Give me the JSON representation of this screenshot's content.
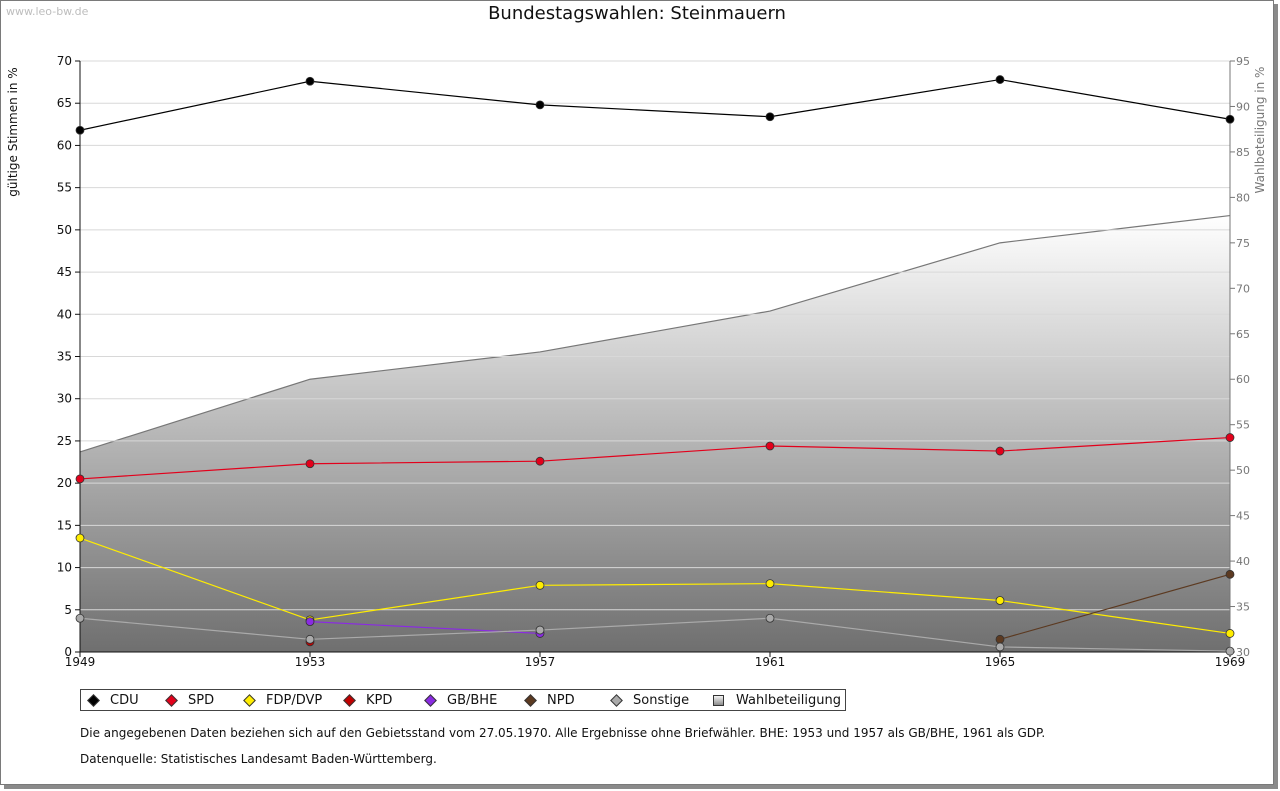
{
  "watermark": "www.leo-bw.de",
  "chart_data": {
    "type": "line",
    "title": "Bundestagswahlen: Steinmauern",
    "ylabel": "gültige Stimmen in %",
    "y2label": "Wahlbeteiligung in %",
    "xlabel": "",
    "x": [
      1949,
      1953,
      1957,
      1961,
      1965,
      1969
    ],
    "x_tick_labels": [
      "1949",
      "1953",
      "1957",
      "1961",
      "1965",
      "1969"
    ],
    "ylim": [
      0,
      70
    ],
    "y_ticks": [
      "0",
      "5",
      "10",
      "15",
      "20",
      "25",
      "30",
      "35",
      "40",
      "45",
      "50",
      "55",
      "60",
      "65",
      "70"
    ],
    "y2lim": [
      30,
      95
    ],
    "y2_ticks": [
      "30",
      "35",
      "40",
      "45",
      "50",
      "55",
      "60",
      "65",
      "70",
      "75",
      "80",
      "85",
      "90",
      "95"
    ],
    "grid": true,
    "legend_position": "bottom",
    "series": [
      {
        "name": "CDU",
        "color": "#000000",
        "axis": "left",
        "values": [
          61.8,
          67.6,
          64.8,
          63.4,
          67.8,
          63.1
        ]
      },
      {
        "name": "SPD",
        "color": "#e3001b",
        "axis": "left",
        "values": [
          20.5,
          22.3,
          22.6,
          24.4,
          23.8,
          25.4
        ]
      },
      {
        "name": "FDP/DVP",
        "color": "#ffed00",
        "axis": "left",
        "values": [
          13.5,
          3.8,
          7.9,
          8.1,
          6.1,
          2.2
        ]
      },
      {
        "name": "KPD",
        "color": "#c00000",
        "axis": "left",
        "values": [
          null,
          1.2,
          null,
          null,
          null,
          null
        ]
      },
      {
        "name": "GB/BHE",
        "color": "#8a2be2",
        "axis": "left",
        "values": [
          null,
          3.6,
          2.2,
          null,
          null,
          null
        ]
      },
      {
        "name": "NPD",
        "color": "#5c3a21",
        "axis": "left",
        "values": [
          null,
          null,
          null,
          null,
          1.5,
          9.2
        ]
      },
      {
        "name": "Sonstige",
        "color": "#aaaaaa",
        "axis": "left",
        "values": [
          4.0,
          1.5,
          2.6,
          4.0,
          0.6,
          0.1
        ]
      },
      {
        "name": "Wahlbeteiligung",
        "color": "#777777",
        "axis": "right",
        "type": "area",
        "values": [
          52.0,
          60.0,
          63.0,
          67.5,
          75.0,
          78.0
        ]
      }
    ]
  },
  "legend": {
    "items": [
      {
        "label": "CDU",
        "color": "#000000",
        "marker": "diamond"
      },
      {
        "label": "SPD",
        "color": "#e3001b",
        "marker": "diamond"
      },
      {
        "label": "FDP/DVP",
        "color": "#ffed00",
        "marker": "diamond"
      },
      {
        "label": "KPD",
        "color": "#c00000",
        "marker": "diamond"
      },
      {
        "label": "GB/BHE",
        "color": "#8a2be2",
        "marker": "diamond"
      },
      {
        "label": "NPD",
        "color": "#5c3a21",
        "marker": "diamond"
      },
      {
        "label": "Sonstige",
        "color": "#aaaaaa",
        "marker": "diamond"
      },
      {
        "label": "Wahlbeteiligung",
        "color": "#999999",
        "marker": "square"
      }
    ]
  },
  "footnote": "Die angegebenen Daten beziehen sich auf den Gebietsstand vom 27.05.1970. Alle Ergebnisse ohne Briefwähler. BHE: 1953 und 1957 als GB/BHE, 1961 als GDP.",
  "source": "Datenquelle: Statistisches Landesamt Baden-Württemberg."
}
